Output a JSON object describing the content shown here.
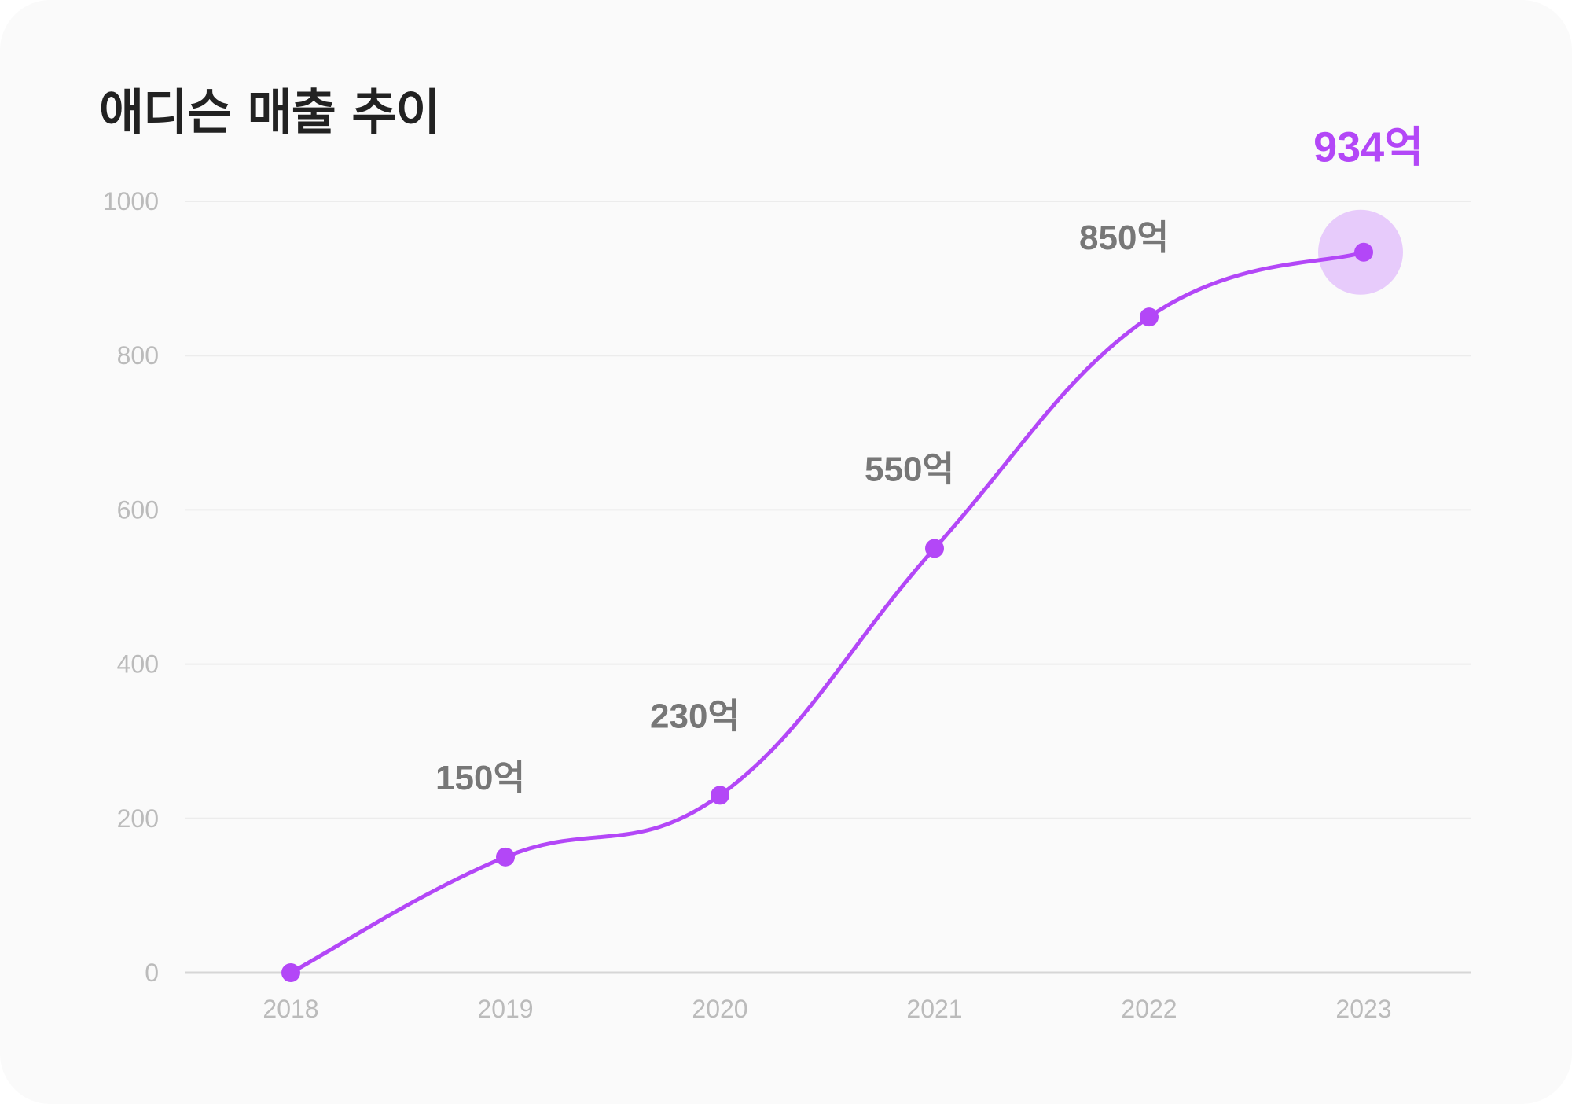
{
  "chart_data": {
    "type": "line",
    "title": "애디슨 매출 추이",
    "xlabel": "",
    "ylabel": "",
    "categories": [
      "2018",
      "2019",
      "2020",
      "2021",
      "2022",
      "2023"
    ],
    "values": [
      0,
      150,
      230,
      550,
      850,
      934
    ],
    "data_labels": [
      "",
      "150억",
      "230억",
      "550억",
      "850억",
      "934억"
    ],
    "highlight_index": 5,
    "ylim": [
      0,
      1000
    ],
    "yticks": [
      0,
      200,
      400,
      600,
      800,
      1000
    ],
    "ytick_labels": [
      "0",
      "200",
      "400",
      "600",
      "800",
      "1000"
    ],
    "grid": true,
    "colors": {
      "line": "#b347f7",
      "halo": "#e7cbfb",
      "label": "#777777",
      "highlight_label": "#b347f7",
      "tick": "#bbbbbb",
      "grid": "#ececec",
      "axis": "#d6d6d6"
    }
  }
}
